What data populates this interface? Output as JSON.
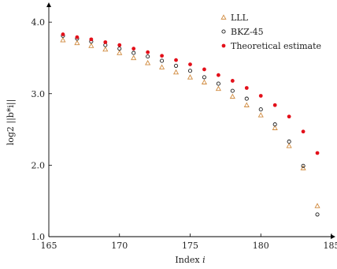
{
  "chart_data": {
    "type": "scatter",
    "xlabel": "Index i",
    "ylabel": "log2 ||b*i||",
    "xlim": [
      165,
      185
    ],
    "ylim": [
      1.0,
      4.2
    ],
    "xticks": [
      "165",
      "170",
      "175",
      "180",
      "185"
    ],
    "yticks": [
      "1.0",
      "2.0",
      "3.0",
      "4.0"
    ],
    "grid": false,
    "legend_position": "top-right",
    "series": [
      {
        "name": "LLL",
        "marker": "triangle-open",
        "color": "#d08a3e",
        "points": [
          [
            166,
            3.75
          ],
          [
            167,
            3.71
          ],
          [
            168,
            3.67
          ],
          [
            169,
            3.62
          ],
          [
            170,
            3.57
          ],
          [
            171,
            3.5
          ],
          [
            172,
            3.43
          ],
          [
            173,
            3.37
          ],
          [
            174,
            3.3
          ],
          [
            175,
            3.23
          ],
          [
            176,
            3.16
          ],
          [
            177,
            3.07
          ],
          [
            178,
            2.96
          ],
          [
            179,
            2.84
          ],
          [
            180,
            2.7
          ],
          [
            181,
            2.52
          ],
          [
            182,
            2.27
          ],
          [
            183,
            1.96
          ],
          [
            184,
            1.43
          ]
        ]
      },
      {
        "name": "BKZ-45",
        "marker": "circle-open",
        "color": "#1a1a1a",
        "points": [
          [
            166,
            3.81
          ],
          [
            167,
            3.77
          ],
          [
            168,
            3.73
          ],
          [
            169,
            3.68
          ],
          [
            170,
            3.63
          ],
          [
            171,
            3.57
          ],
          [
            172,
            3.52
          ],
          [
            173,
            3.46
          ],
          [
            174,
            3.39
          ],
          [
            175,
            3.32
          ],
          [
            176,
            3.23
          ],
          [
            177,
            3.14
          ],
          [
            178,
            3.04
          ],
          [
            179,
            2.93
          ],
          [
            180,
            2.78
          ],
          [
            181,
            2.57
          ],
          [
            182,
            2.33
          ],
          [
            183,
            1.99
          ],
          [
            184,
            1.31
          ]
        ]
      },
      {
        "name": "Theoretical estimate",
        "marker": "circle-filled",
        "color": "#e3101a",
        "points": [
          [
            166,
            3.83
          ],
          [
            167,
            3.79
          ],
          [
            168,
            3.76
          ],
          [
            169,
            3.72
          ],
          [
            170,
            3.68
          ],
          [
            171,
            3.63
          ],
          [
            172,
            3.58
          ],
          [
            173,
            3.53
          ],
          [
            174,
            3.47
          ],
          [
            175,
            3.41
          ],
          [
            176,
            3.34
          ],
          [
            177,
            3.26
          ],
          [
            178,
            3.18
          ],
          [
            179,
            3.08
          ],
          [
            180,
            2.97
          ],
          [
            181,
            2.84
          ],
          [
            182,
            2.68
          ],
          [
            183,
            2.47
          ],
          [
            184,
            2.17
          ]
        ]
      }
    ]
  }
}
